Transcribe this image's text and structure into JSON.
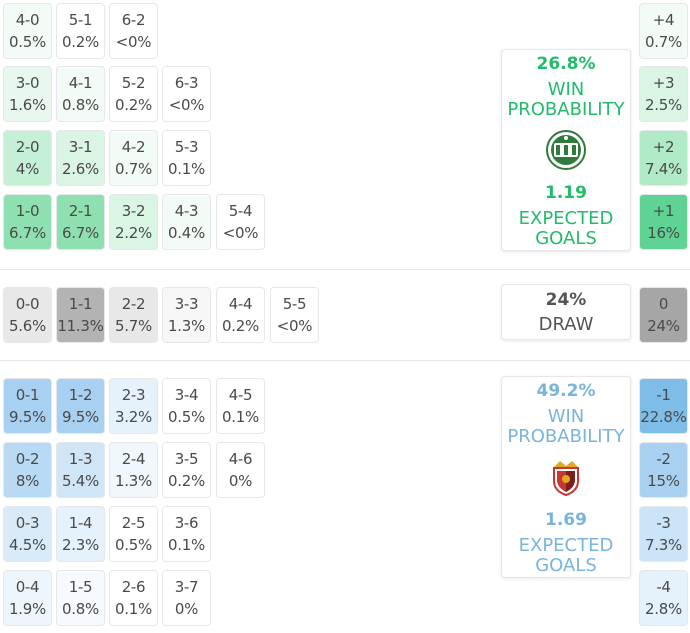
{
  "home_scores": [
    [
      {
        "s": "4-0",
        "p": "0.5%",
        "c": "#f3fbf6"
      },
      {
        "s": "5-1",
        "p": "0.2%",
        "c": "#ffffff"
      },
      {
        "s": "6-2",
        "p": "<0%",
        "c": "#ffffff"
      }
    ],
    [
      {
        "s": "3-0",
        "p": "1.6%",
        "c": "#e9f8ef"
      },
      {
        "s": "4-1",
        "p": "0.8%",
        "c": "#f3fbf6"
      },
      {
        "s": "5-2",
        "p": "0.2%",
        "c": "#ffffff"
      },
      {
        "s": "6-3",
        "p": "<0%",
        "c": "#ffffff"
      }
    ],
    [
      {
        "s": "2-0",
        "p": "4%",
        "c": "#c6f0d6"
      },
      {
        "s": "3-1",
        "p": "2.6%",
        "c": "#dbf5e5"
      },
      {
        "s": "4-2",
        "p": "0.7%",
        "c": "#f3fbf6"
      },
      {
        "s": "5-3",
        "p": "0.1%",
        "c": "#ffffff"
      }
    ],
    [
      {
        "s": "1-0",
        "p": "6.7%",
        "c": "#8fe0b0"
      },
      {
        "s": "2-1",
        "p": "6.7%",
        "c": "#8fe0b0"
      },
      {
        "s": "3-2",
        "p": "2.2%",
        "c": "#dbf5e5"
      },
      {
        "s": "4-3",
        "p": "0.4%",
        "c": "#f3fbf6"
      },
      {
        "s": "5-4",
        "p": "<0%",
        "c": "#ffffff"
      }
    ]
  ],
  "draw_scores": [
    {
      "s": "0-0",
      "p": "5.6%",
      "c": "#e8e8e8"
    },
    {
      "s": "1-1",
      "p": "11.3%",
      "c": "#b3b3b3"
    },
    {
      "s": "2-2",
      "p": "5.7%",
      "c": "#e8e8e8"
    },
    {
      "s": "3-3",
      "p": "1.3%",
      "c": "#f7f7f7"
    },
    {
      "s": "4-4",
      "p": "0.2%",
      "c": "#ffffff"
    },
    {
      "s": "5-5",
      "p": "<0%",
      "c": "#ffffff"
    }
  ],
  "away_scores": [
    [
      {
        "s": "0-1",
        "p": "9.5%",
        "c": "#a8d1f1"
      },
      {
        "s": "1-2",
        "p": "9.5%",
        "c": "#a8d1f1"
      },
      {
        "s": "2-3",
        "p": "3.2%",
        "c": "#e6f2fb"
      },
      {
        "s": "3-4",
        "p": "0.5%",
        "c": "#ffffff"
      },
      {
        "s": "4-5",
        "p": "0.1%",
        "c": "#ffffff"
      }
    ],
    [
      {
        "s": "0-2",
        "p": "8%",
        "c": "#b9daf4"
      },
      {
        "s": "1-3",
        "p": "5.4%",
        "c": "#d0e6f7"
      },
      {
        "s": "2-4",
        "p": "1.3%",
        "c": "#f0f7fd"
      },
      {
        "s": "3-5",
        "p": "0.2%",
        "c": "#ffffff"
      },
      {
        "s": "4-6",
        "p": "0%",
        "c": "#ffffff"
      }
    ],
    [
      {
        "s": "0-3",
        "p": "4.5%",
        "c": "#d9ebf9"
      },
      {
        "s": "1-4",
        "p": "2.3%",
        "c": "#e6f2fb"
      },
      {
        "s": "2-5",
        "p": "0.5%",
        "c": "#ffffff"
      },
      {
        "s": "3-6",
        "p": "0.1%",
        "c": "#ffffff"
      }
    ],
    [
      {
        "s": "0-4",
        "p": "1.9%",
        "c": "#eef6fd"
      },
      {
        "s": "1-5",
        "p": "0.8%",
        "c": "#f6fafe"
      },
      {
        "s": "2-6",
        "p": "0.1%",
        "c": "#ffffff"
      },
      {
        "s": "3-7",
        "p": "0%",
        "c": "#ffffff"
      }
    ]
  ],
  "home_margins": [
    {
      "m": "+4",
      "p": "0.7%",
      "c": "#f3fbf6"
    },
    {
      "m": "+3",
      "p": "2.5%",
      "c": "#dbf5e5"
    },
    {
      "m": "+2",
      "p": "7.4%",
      "c": "#b0eac6"
    },
    {
      "m": "+1",
      "p": "16%",
      "c": "#5fd394"
    }
  ],
  "draw_margin": {
    "m": "0",
    "p": "24%",
    "c": "#a6a6a6"
  },
  "away_margins": [
    {
      "m": "-1",
      "p": "22.8%",
      "c": "#7fbde9"
    },
    {
      "m": "-2",
      "p": "15%",
      "c": "#a8d1f1"
    },
    {
      "m": "-3",
      "p": "7.3%",
      "c": "#cbe4f7"
    },
    {
      "m": "-4",
      "p": "2.8%",
      "c": "#e6f2fb"
    }
  ],
  "home_panel": {
    "win_pct": "26.8%",
    "win_label_1": "WIN",
    "win_label_2": "PROBABILITY",
    "xg": "1.19",
    "xg_label_1": "EXPECTED",
    "xg_label_2": "GOALS",
    "color": "#22bb6a",
    "logo": "green-club-crest-icon"
  },
  "draw_panel": {
    "pct": "24%",
    "label": "DRAW"
  },
  "away_panel": {
    "win_pct": "49.2%",
    "win_label_1": "WIN",
    "win_label_2": "PROBABILITY",
    "xg": "1.69",
    "xg_label_1": "EXPECTED",
    "xg_label_2": "GOALS",
    "color": "#79b4dd",
    "logo": "red-gold-club-crest-icon"
  }
}
